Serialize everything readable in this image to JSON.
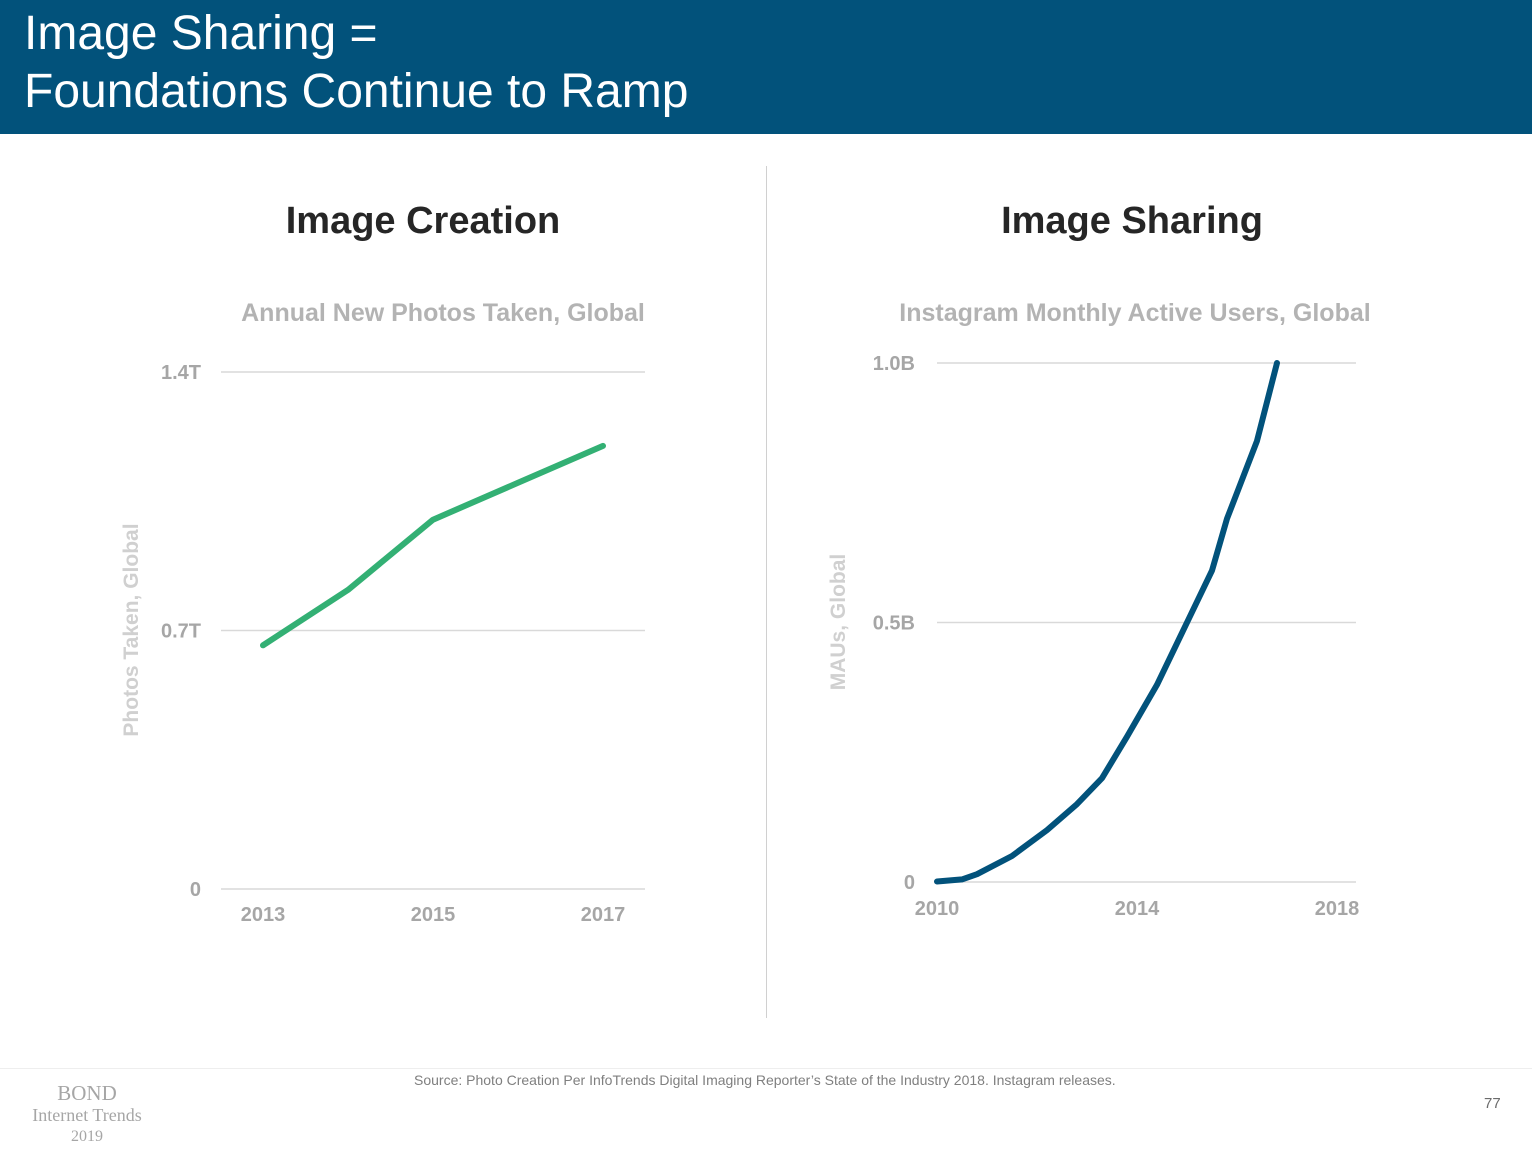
{
  "header": {
    "title_line1": "Image Sharing =",
    "title_line2": "Foundations Continue to Ramp"
  },
  "panels": {
    "left_title": "Image Creation",
    "right_title": "Image Sharing"
  },
  "chart_data": [
    {
      "type": "line",
      "title": "Annual New Photos Taken, Global",
      "ylabel": "Photos Taken, Global",
      "xlabel": "",
      "x": [
        2013,
        2014,
        2015,
        2016,
        2017
      ],
      "series": [
        {
          "values": [
            0.66,
            0.81,
            1.0,
            1.1,
            1.2
          ],
          "color": "#33b074"
        }
      ],
      "xlim": [
        2013,
        2017
      ],
      "ylim": [
        0,
        1.4
      ],
      "yticks": [
        0,
        0.7,
        1.4
      ],
      "ytick_labels": [
        "0",
        "0.7T",
        "1.4T"
      ],
      "xticks": [
        2013,
        2015,
        2017
      ],
      "xtick_labels": [
        "2013",
        "2015",
        "2017"
      ],
      "grid": true
    },
    {
      "type": "line",
      "title": "Instagram Monthly Active Users, Global",
      "ylabel": "MAUs, Global",
      "xlabel": "",
      "x": [
        2010.0,
        2010.5,
        2010.8,
        2011.5,
        2012.2,
        2012.8,
        2013.3,
        2013.8,
        2014.4,
        2015.0,
        2015.5,
        2015.8,
        2016.0,
        2016.4,
        2016.8
      ],
      "series": [
        {
          "values": [
            0.001,
            0.005,
            0.015,
            0.05,
            0.1,
            0.15,
            0.2,
            0.28,
            0.38,
            0.5,
            0.6,
            0.7,
            0.75,
            0.85,
            1.0
          ],
          "color": "#02527b"
        }
      ],
      "xlim": [
        2010,
        2018
      ],
      "ylim": [
        0,
        1.0
      ],
      "yticks": [
        0,
        0.5,
        1.0
      ],
      "ytick_labels": [
        "0",
        "0.5B",
        "1.0B"
      ],
      "xticks": [
        2010,
        2014,
        2018
      ],
      "xtick_labels": [
        "2010",
        "2014",
        "2018"
      ],
      "grid": true
    }
  ],
  "footer": {
    "source": "Source: Photo Creation Per InfoTrends Digital Imaging Reporter’s State of the Industry 2018.  Instagram releases.",
    "page_number": "77",
    "logo_brand": "BOND",
    "logo_subtitle": "Internet Trends",
    "logo_year": "2019"
  }
}
